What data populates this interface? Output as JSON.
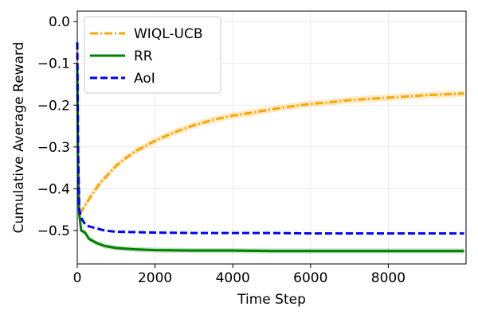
{
  "chart_data": {
    "type": "line",
    "title": "",
    "xlabel": "Time Step",
    "ylabel": "Cumulative Average Reward",
    "xlim": [
      0,
      10000
    ],
    "ylim": [
      -0.58,
      0.025
    ],
    "xticks": [
      0,
      2000,
      4000,
      6000,
      8000
    ],
    "yticks": [
      0.0,
      -0.1,
      -0.2,
      -0.3,
      -0.4,
      -0.5
    ],
    "xtick_labels": [
      "0",
      "2000",
      "4000",
      "6000",
      "8000"
    ],
    "ytick_labels": [
      "0.0",
      "−0.1",
      "−0.2",
      "−0.3",
      "−0.4",
      "−0.5"
    ],
    "grid": true,
    "legend": "top-left",
    "series": [
      {
        "name": "WIQL-UCB",
        "color": "#ffa500",
        "style": "dashdot",
        "band": 0.008,
        "x": [
          50,
          100,
          200,
          400,
          600,
          800,
          1000,
          1200,
          1500,
          1800,
          2000,
          2500,
          3000,
          3500,
          4000,
          4500,
          5000,
          5500,
          6000,
          6500,
          7000,
          7500,
          8000,
          8500,
          9000,
          9500,
          9950
        ],
        "y": [
          -0.46,
          -0.455,
          -0.44,
          -0.41,
          -0.385,
          -0.365,
          -0.345,
          -0.33,
          -0.31,
          -0.295,
          -0.285,
          -0.265,
          -0.248,
          -0.235,
          -0.225,
          -0.218,
          -0.21,
          -0.203,
          -0.197,
          -0.193,
          -0.188,
          -0.185,
          -0.182,
          -0.179,
          -0.176,
          -0.174,
          -0.172
        ]
      },
      {
        "name": "RR",
        "color": "#008000",
        "style": "solid",
        "band": 0.006,
        "x": [
          0,
          20,
          50,
          100,
          200,
          300,
          500,
          700,
          1000,
          1500,
          2000,
          3000,
          4000,
          5000,
          6000,
          7000,
          8000,
          9000,
          9950
        ],
        "y": [
          -0.1,
          -0.35,
          -0.46,
          -0.5,
          -0.505,
          -0.52,
          -0.53,
          -0.537,
          -0.542,
          -0.545,
          -0.547,
          -0.548,
          -0.548,
          -0.549,
          -0.549,
          -0.549,
          -0.549,
          -0.549,
          -0.549
        ]
      },
      {
        "name": "AoI",
        "color": "#0000ff",
        "style": "dashed",
        "band": 0.0,
        "x": [
          0,
          20,
          50,
          100,
          200,
          300,
          500,
          700,
          1000,
          1500,
          2000,
          3000,
          4000,
          5000,
          6000,
          7000,
          8000,
          9000,
          9950
        ],
        "y": [
          -0.05,
          -0.3,
          -0.45,
          -0.47,
          -0.485,
          -0.49,
          -0.495,
          -0.5,
          -0.503,
          -0.504,
          -0.505,
          -0.506,
          -0.506,
          -0.506,
          -0.507,
          -0.507,
          -0.507,
          -0.507,
          -0.507
        ]
      }
    ]
  }
}
